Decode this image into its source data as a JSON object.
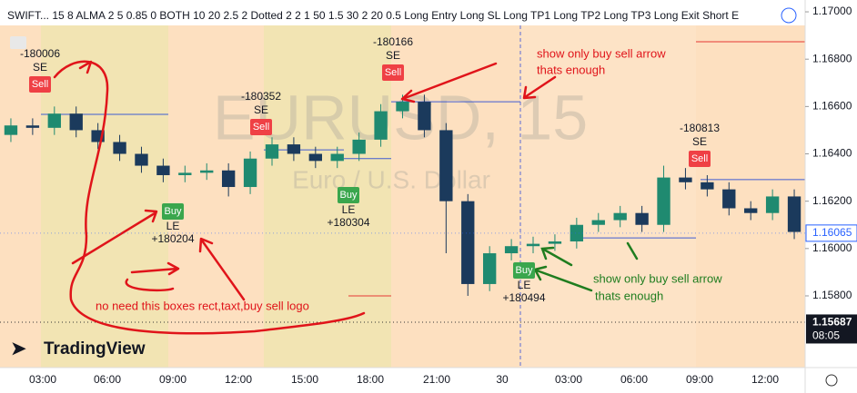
{
  "chart_data": {
    "type": "candlestick",
    "header": "SWIFT... 15 8 ALMA 2 5 0.85 0 BOTH 10 20 2.5 2 Dotted 2 2 1 50 1.5 30 2 20 0.5 Long Entry Long SL Long TP1 Long TP2 Long TP3 Long Exit Short E",
    "watermark": "EURUSD, 15",
    "watermark_sub": "Euro / U.S. Dollar",
    "logo": "TradingView",
    "up_color": "#1f8a70",
    "down_color": "#1b3a5c",
    "ylim": [
      1.15497,
      1.1705
    ],
    "yticks": [
      {
        "value": 1.17,
        "label": "1.17000"
      },
      {
        "value": 1.168,
        "label": "1.16800"
      },
      {
        "value": 1.166,
        "label": "1.16600"
      },
      {
        "value": 1.164,
        "label": "1.16400"
      },
      {
        "value": 1.162,
        "label": "1.16200"
      },
      {
        "value": 1.16,
        "label": "1.16000"
      },
      {
        "value": 1.158,
        "label": "1.15800"
      }
    ],
    "x_labels": [
      "03:00",
      "06:00",
      "09:00",
      "12:00",
      "15:00",
      "18:00",
      "21:00",
      "30",
      "03:00",
      "06:00",
      "09:00",
      "12:00"
    ],
    "last_price": 1.16065,
    "cursor_price": 1.15687,
    "cursor_time": "08:05",
    "open": [
      1.1648,
      1.1652,
      1.1651,
      1.1657,
      1.165,
      1.1645,
      1.164,
      1.1635,
      1.1631,
      1.1632,
      1.1633,
      1.1626,
      1.1638,
      1.1644,
      1.164,
      1.1637,
      1.164,
      1.1646,
      1.1658,
      1.1662,
      1.165,
      1.162,
      1.1585,
      1.1598,
      1.1601,
      1.1602,
      1.1603,
      1.161,
      1.1612,
      1.1615,
      1.161,
      1.163,
      1.1628,
      1.1625,
      1.1617,
      1.1615,
      1.1622
    ],
    "high": [
      1.1655,
      1.1655,
      1.166,
      1.166,
      1.1653,
      1.1648,
      1.1643,
      1.1638,
      1.1635,
      1.1636,
      1.1636,
      1.1641,
      1.1647,
      1.1647,
      1.1643,
      1.1643,
      1.1649,
      1.1661,
      1.1665,
      1.1665,
      1.1653,
      1.1623,
      1.1601,
      1.1604,
      1.1605,
      1.1606,
      1.1613,
      1.1615,
      1.1618,
      1.1618,
      1.1635,
      1.1634,
      1.1631,
      1.1628,
      1.162,
      1.1625,
      1.1625
    ],
    "low": [
      1.1645,
      1.1648,
      1.1648,
      1.1647,
      1.1642,
      1.1637,
      1.1632,
      1.1628,
      1.1628,
      1.1629,
      1.1622,
      1.1623,
      1.1635,
      1.1637,
      1.1634,
      1.1634,
      1.1637,
      1.1643,
      1.1655,
      1.1647,
      1.1598,
      1.158,
      1.1582,
      1.1595,
      1.1598,
      1.1599,
      1.16,
      1.1607,
      1.1609,
      1.1607,
      1.1607,
      1.1625,
      1.1622,
      1.1614,
      1.1612,
      1.1612,
      1.1604
    ],
    "close": [
      1.1652,
      1.1651,
      1.1657,
      1.165,
      1.1645,
      1.164,
      1.1635,
      1.1631,
      1.1632,
      1.1633,
      1.1626,
      1.1638,
      1.1644,
      1.164,
      1.1637,
      1.164,
      1.1646,
      1.1658,
      1.1662,
      1.165,
      1.162,
      1.1585,
      1.1598,
      1.1601,
      1.1602,
      1.1603,
      1.161,
      1.1612,
      1.1615,
      1.161,
      1.163,
      1.1628,
      1.1625,
      1.1617,
      1.1615,
      1.1622,
      1.1607
    ],
    "levels": [
      1.16567,
      1.16417,
      1.1638,
      1.1662,
      1.16045,
      1.16291
    ],
    "signals": [
      {
        "amount": "-180006",
        "code": "SE",
        "label": "Sell"
      },
      {
        "amount": "-180352",
        "code": "SE",
        "label": "Sell"
      },
      {
        "amount": "-180166",
        "code": "SE",
        "label": "Sell"
      },
      {
        "amount": "-180813",
        "code": "SE",
        "label": "Sell"
      },
      {
        "amount": "+180204",
        "code": "LE",
        "label": "Buy"
      },
      {
        "amount": "+180304",
        "code": "LE",
        "label": "Buy"
      },
      {
        "amount": "+180494",
        "code": "LE",
        "label": "Buy"
      }
    ],
    "annotations": [
      "show only buy sell arrow",
      "thats enough",
      "no need this boxes rect,taxt,buy sell logo",
      "show only buy sell arrow",
      "thats enough"
    ]
  }
}
